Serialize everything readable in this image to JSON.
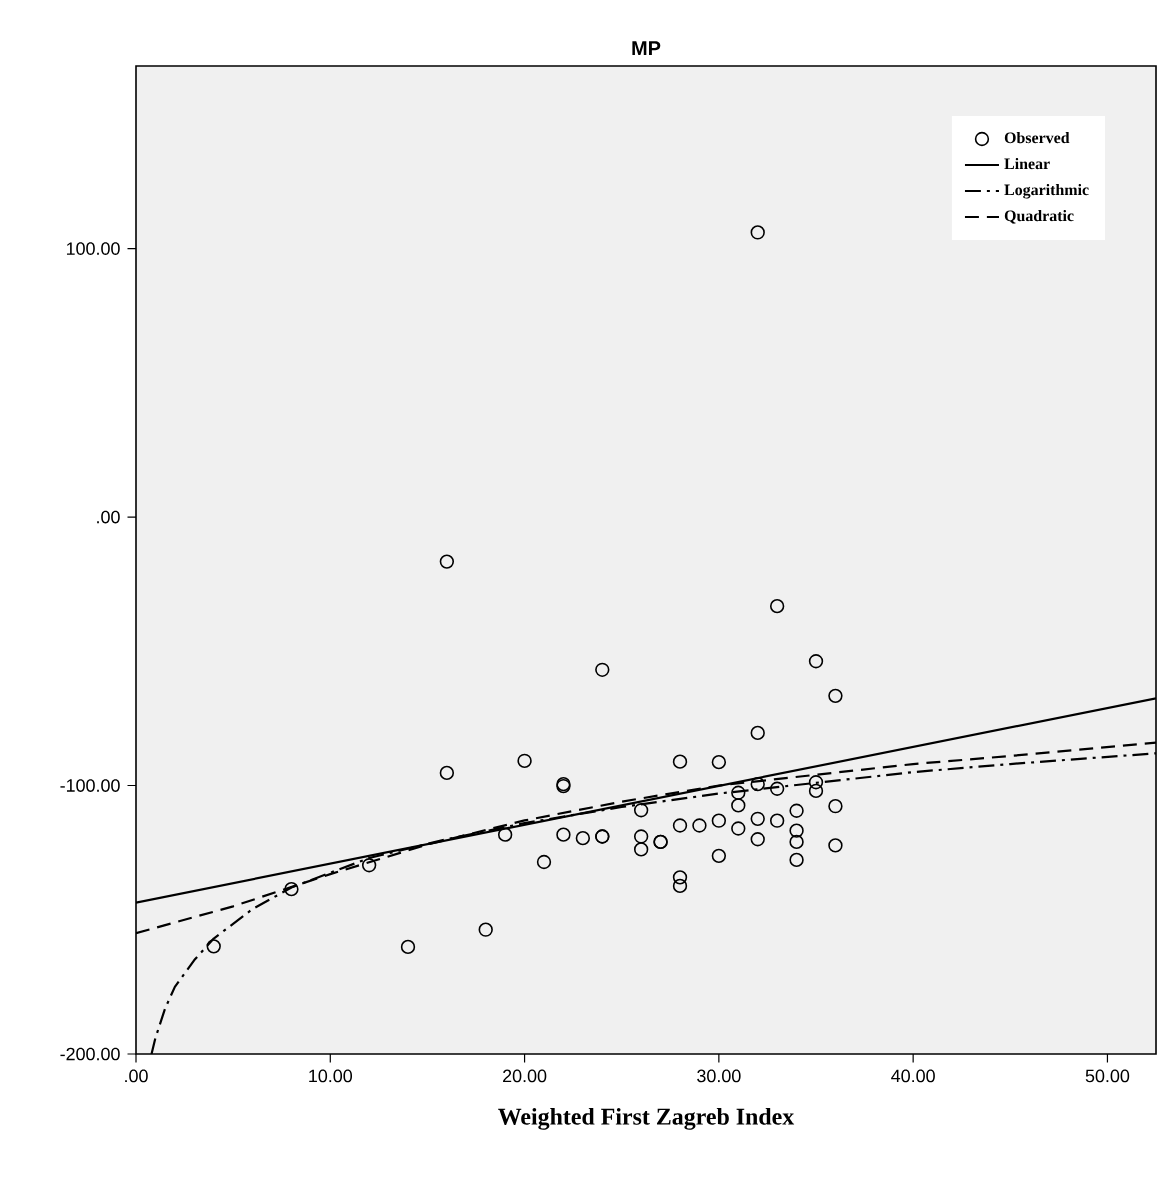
{
  "chart_data": {
    "type": "scatter",
    "title": "MP",
    "xlabel": "Weighted First Zagreb Index",
    "xlim": [
      0,
      52.5
    ],
    "ylim": [
      -200,
      168
    ],
    "xticks": [
      {
        "value": 0,
        "label": ".00"
      },
      {
        "value": 10,
        "label": "10.00"
      },
      {
        "value": 20,
        "label": "20.00"
      },
      {
        "value": 30,
        "label": "30.00"
      },
      {
        "value": 40,
        "label": "40.00"
      },
      {
        "value": 50,
        "label": "50.00"
      }
    ],
    "yticks": [
      {
        "value": -200,
        "label": "-200.00"
      },
      {
        "value": -100,
        "label": "-100.00"
      },
      {
        "value": 0,
        "label": ".00"
      },
      {
        "value": 100,
        "label": "100.00"
      }
    ],
    "legend": "top right",
    "series": [
      {
        "name": "Observed",
        "marker": "circle",
        "color": "#000000",
        "x": [
          32,
          16,
          33,
          24,
          35,
          36,
          32,
          16,
          20,
          28,
          30,
          22,
          22,
          32,
          33,
          31,
          35,
          35,
          36,
          31,
          34,
          26,
          28,
          29,
          30,
          31,
          32,
          33,
          34,
          19,
          22,
          23,
          24,
          24,
          26,
          27,
          27,
          26,
          32,
          34,
          36,
          30,
          34,
          21,
          12,
          28,
          28,
          8,
          18,
          4,
          14
        ],
        "values": [
          106,
          -16.6,
          -33.2,
          -56.9,
          -53.7,
          -66.6,
          -80.4,
          -95.3,
          -90.8,
          -91.1,
          -91.3,
          -99.5,
          -100.2,
          -99.5,
          -101.2,
          -102.7,
          -98.8,
          -102,
          -107.7,
          -107.4,
          -109.4,
          -109.2,
          -114.9,
          -114.9,
          -113.1,
          -116,
          -112.4,
          -113.1,
          -116.8,
          -118.3,
          -118.3,
          -119.6,
          -119,
          -119,
          -119,
          -121,
          -121,
          -123.8,
          -120,
          -121,
          -122.3,
          -126.2,
          -127.7,
          -128.5,
          -129.7,
          -134.2,
          -137.4,
          -138.6,
          -153.7,
          -159.9,
          -160.1
        ]
      },
      {
        "name": "Linear",
        "type": "line",
        "marker": "none",
        "line_style": "solid",
        "color": "#000000",
        "x": [
          0,
          52.5
        ],
        "values": [
          -143.6,
          -67.5
        ]
      },
      {
        "name": "Logarithmic",
        "type": "line",
        "marker": "none",
        "line_style": "dashdot",
        "color": "#000000",
        "x": [
          0.8,
          1,
          1.5,
          2,
          3,
          4,
          6,
          8,
          12,
          16,
          20,
          25,
          30,
          35,
          40,
          45,
          52.5
        ],
        "values": [
          -200,
          -194,
          -183,
          -175,
          -165,
          -157,
          -146,
          -138,
          -127,
          -120,
          -114,
          -108,
          -103,
          -99,
          -95,
          -92,
          -88
        ]
      },
      {
        "name": "Quadratic",
        "type": "line",
        "marker": "none",
        "line_style": "dashed",
        "color": "#000000",
        "x": [
          0,
          5,
          10,
          15,
          20,
          25,
          30,
          35,
          40,
          45,
          52.5
        ],
        "values": [
          -155,
          -145,
          -133,
          -122,
          -113,
          -106,
          -100,
          -96,
          -92,
          -89,
          -84
        ]
      }
    ]
  }
}
